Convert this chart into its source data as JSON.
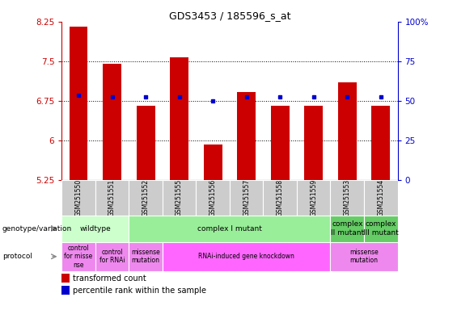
{
  "title": "GDS3453 / 185596_s_at",
  "samples": [
    "GSM251550",
    "GSM251551",
    "GSM251552",
    "GSM251555",
    "GSM251556",
    "GSM251557",
    "GSM251558",
    "GSM251559",
    "GSM251553",
    "GSM251554"
  ],
  "bar_values": [
    8.15,
    7.45,
    6.65,
    7.58,
    5.92,
    6.92,
    6.65,
    6.65,
    7.1,
    6.65
  ],
  "bar_bottom": 5.25,
  "blue_dot_values": [
    6.85,
    6.82,
    6.82,
    6.82,
    6.75,
    6.82,
    6.82,
    6.82,
    6.82,
    6.82
  ],
  "ylim_left": [
    5.25,
    8.25
  ],
  "ylim_right": [
    0,
    100
  ],
  "yticks_left": [
    5.25,
    6.0,
    6.75,
    7.5,
    8.25
  ],
  "yticks_right": [
    0,
    25,
    50,
    75,
    100
  ],
  "ytick_labels_left": [
    "5.25",
    "6",
    "6.75",
    "7.5",
    "8.25"
  ],
  "ytick_labels_right": [
    "0",
    "25",
    "50",
    "75",
    "100%"
  ],
  "bar_color": "#cc0000",
  "blue_dot_color": "#0000cc",
  "geno_groups": [
    {
      "cols": [
        0,
        1
      ],
      "label": "wildtype",
      "color": "#ccffcc"
    },
    {
      "cols": [
        2,
        3,
        4,
        5,
        6,
        7
      ],
      "label": "complex I mutant",
      "color": "#99ee99"
    },
    {
      "cols": [
        8
      ],
      "label": "complex\nII mutant",
      "color": "#66cc66"
    },
    {
      "cols": [
        9
      ],
      "label": "complex\nIII mutant",
      "color": "#66cc66"
    }
  ],
  "proto_groups": [
    {
      "cols": [
        0
      ],
      "label": "control\nfor misse\nnse",
      "color": "#ee88ee"
    },
    {
      "cols": [
        1
      ],
      "label": "control\nfor RNAi",
      "color": "#ee88ee"
    },
    {
      "cols": [
        2
      ],
      "label": "missense\nmutation",
      "color": "#ee88ee"
    },
    {
      "cols": [
        3,
        4,
        5,
        6,
        7
      ],
      "label": "RNAi-induced gene knockdown",
      "color": "#ff66ff"
    },
    {
      "cols": [
        8,
        9
      ],
      "label": "missense\nmutation",
      "color": "#ee88ee"
    }
  ],
  "left_axis_color": "#cc0000",
  "right_axis_color": "#0000cc",
  "sample_bg": "#cccccc"
}
